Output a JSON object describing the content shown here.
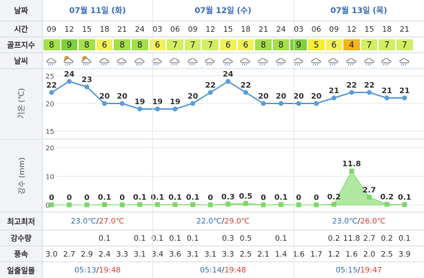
{
  "labels": {
    "date": "날짜",
    "time": "시간",
    "golf_index": "골프지수",
    "weather": "날씨",
    "temp_axis": "기온 (℃)",
    "rain_axis": "강수 (mm)",
    "minmax": "최고최저",
    "precip": "강수량",
    "wind": "풍속",
    "sun": "일출일몰"
  },
  "days": [
    {
      "name": "07월 11일 (화)",
      "minmax_low": "23.0℃",
      "minmax_high": "27.0℃",
      "sunrise": "05:13",
      "sunset": "19:48"
    },
    {
      "name": "07월 12일 (수)",
      "minmax_low": "22.0℃",
      "minmax_high": "29.0℃",
      "sunrise": "05:14",
      "sunset": "19:48"
    },
    {
      "name": "07월 13일 (목)",
      "minmax_low": "23.0℃",
      "minmax_high": "26.0℃",
      "sunrise": "05:15",
      "sunset": "19:47"
    }
  ],
  "separator": "/",
  "times": [
    "09",
    "12",
    "15",
    "18",
    "21",
    "24",
    "03",
    "06",
    "09",
    "12",
    "15",
    "18",
    "21",
    "24",
    "03",
    "06",
    "09",
    "12",
    "15",
    "18",
    "21"
  ],
  "golf": [
    "8",
    "9",
    "8",
    "6",
    "8",
    "8",
    "6",
    "7",
    "7",
    "7",
    "6",
    "6",
    "8",
    "8",
    "9",
    "5",
    "6",
    "4",
    "7",
    "7",
    "7"
  ],
  "golf_colors": {
    "9": "#7fd13b",
    "8": "#a4df4c",
    "7": "#d2ee62",
    "6": "#f1f15c",
    "5": "#f6ee34",
    "4": "#f4b41a"
  },
  "weather_icons": [
    "cloud-rain-icon",
    "sun-cloud-rain-icon",
    "sun-cloud-rain-icon",
    "cloud-rain-icon",
    "cloud-rain-icon",
    "cloud-rain-icon",
    "cloud-rain-icon",
    "cloud-rain-icon",
    "cloud-rain-icon",
    "cloud-rain-icon",
    "cloud-rain-icon",
    "cloud-rain-icon",
    "cloud-rain-icon",
    "cloud-rain-icon",
    "cloud-rain-icon",
    "cloud-rain-icon",
    "cloud-rain-icon",
    "cloud-rain-icon",
    "cloud-rain-icon",
    "cloud-rain-icon",
    "cloud-rain-icon"
  ],
  "precip_row": [
    "",
    "",
    "",
    "0.1",
    "",
    "0.1",
    "0.1",
    "0.1",
    "0.1",
    "",
    "0.3",
    "0.5",
    "",
    "0.1",
    "",
    "",
    "0.2",
    "11.8",
    "2.7",
    "0.2",
    "0.1"
  ],
  "wind_row": [
    "3.0",
    "2.7",
    "2.9",
    "2.4",
    "3.3",
    "3.1",
    "3.4",
    "3.6",
    "3.1",
    "3.1",
    "3.3",
    "2.5",
    "2.1",
    "1.4",
    "1.6",
    "1.7",
    "1.2",
    "1.6",
    "2.0",
    "2.5",
    "3.9"
  ],
  "chart_data": [
    {
      "type": "line",
      "ylabel": "기온 (℃)",
      "ylim": [
        15,
        25
      ],
      "yticks": [
        "15",
        "20",
        "25"
      ],
      "values": [
        22,
        24,
        23,
        20,
        20,
        19,
        19,
        19,
        20,
        22,
        24,
        22,
        20,
        20,
        20,
        20,
        21,
        22,
        22,
        21,
        21
      ],
      "value_labels": [
        "22",
        "24",
        "23",
        "20",
        "20",
        "19",
        "19",
        "19",
        "20",
        "22",
        "24",
        "22",
        "20",
        "20",
        "20",
        "20",
        "21",
        "22",
        "22",
        "21",
        "21"
      ],
      "color": "#5b9bd9",
      "grid": true
    },
    {
      "type": "area",
      "ylabel": "강수 (mm)",
      "ylim": [
        0,
        20
      ],
      "yticks": [
        "0",
        "10",
        "20"
      ],
      "values": [
        0,
        0,
        0,
        0.1,
        0,
        0.1,
        0.1,
        0.1,
        0.1,
        0,
        0.3,
        0.5,
        0,
        0.1,
        0,
        0,
        0.2,
        11.8,
        2.7,
        0.2,
        0.1
      ],
      "value_labels": [
        "0",
        "0",
        "0",
        "0.1",
        "0",
        "0.1",
        "0.1",
        "0.1",
        "0.1",
        "0",
        "0.3",
        "0.5",
        "0",
        "0.1",
        "0",
        "0",
        "0.2",
        "11.8",
        "2.7",
        "0.2",
        "0.1"
      ],
      "color": "#7fd66b",
      "grid": true
    }
  ]
}
